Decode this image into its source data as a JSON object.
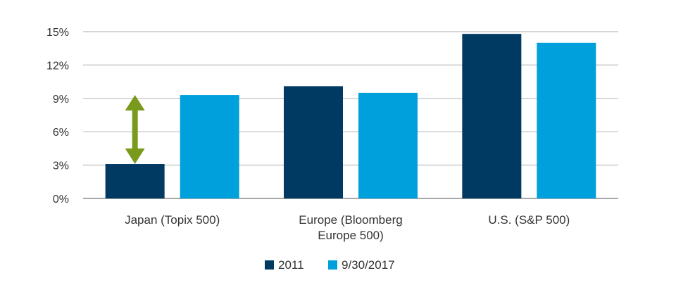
{
  "chart_data": {
    "type": "bar",
    "categories": [
      "Japan (Topix 500)",
      "Europe (Bloomberg Europe 500)",
      "U.S. (S&P 500)"
    ],
    "category_label_lines": [
      [
        "Japan (Topix 500)"
      ],
      [
        "Europe (Bloomberg",
        "Europe 500)"
      ],
      [
        "U.S. (S&P 500)"
      ]
    ],
    "series": [
      {
        "name": "2011",
        "values": [
          3.1,
          10.1,
          14.8
        ],
        "color": "#003a63"
      },
      {
        "name": "9/30/2017",
        "values": [
          9.3,
          9.5,
          14.0
        ],
        "color": "#00a0dc"
      }
    ],
    "ylim": [
      0,
      15
    ],
    "yticks": [
      0,
      3,
      6,
      9,
      12,
      15
    ],
    "ytick_labels": [
      "0%",
      "3%",
      "6%",
      "9%",
      "12%",
      "15%"
    ],
    "grid": true,
    "legend_position": "bottom-center",
    "annotation": {
      "type": "double-arrow",
      "category": "Japan (Topix 500)",
      "from": 3.1,
      "to": 9.3,
      "color": "#7a9a1e"
    },
    "title": "",
    "xlabel": "",
    "ylabel": ""
  }
}
